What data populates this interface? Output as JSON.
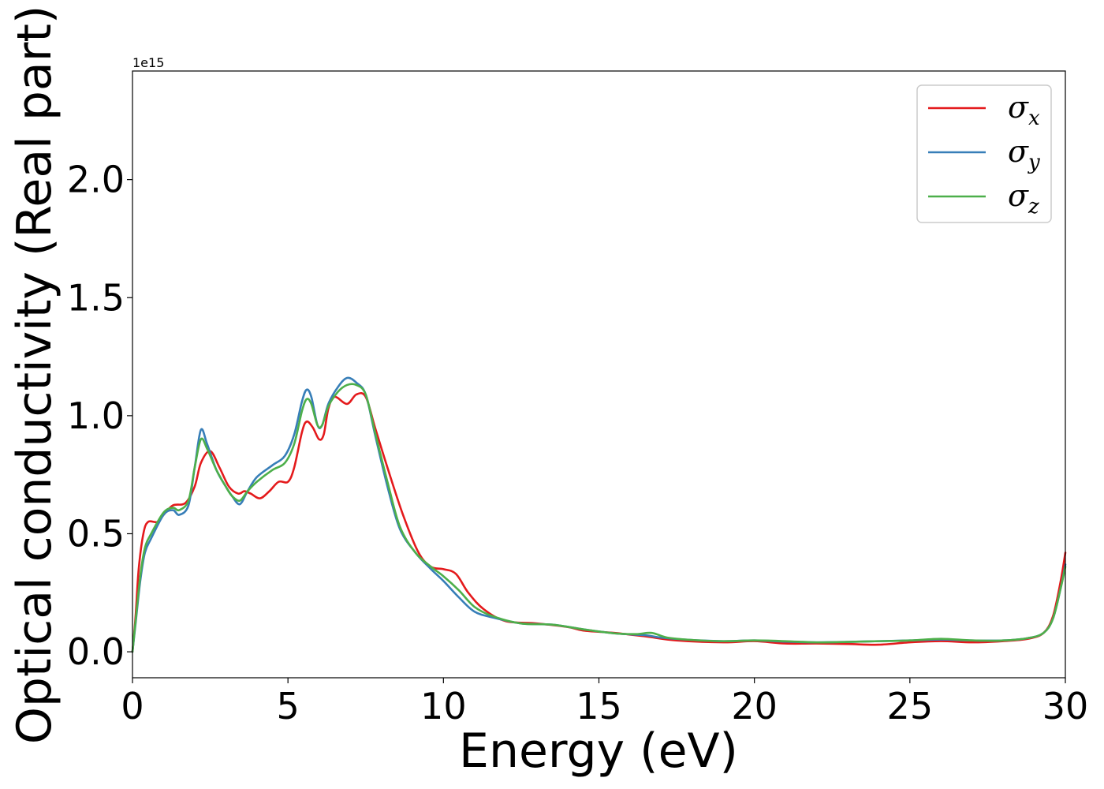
{
  "chart_data": {
    "type": "line",
    "xlabel": "Energy (eV)",
    "ylabel": "Optical conductivity (Real part)",
    "offset_text": "1e15",
    "xlim": [
      0,
      30
    ],
    "ylim": [
      -0.11,
      2.46
    ],
    "x_ticks": [
      0,
      5,
      10,
      15,
      20,
      25,
      30
    ],
    "x_tick_labels": [
      "0",
      "5",
      "10",
      "15",
      "20",
      "25",
      "30"
    ],
    "y_ticks": [
      0.0,
      0.5,
      1.0,
      1.5,
      2.0
    ],
    "y_tick_labels": [
      "0.0",
      "0.5",
      "1.0",
      "1.5",
      "2.0"
    ],
    "grid": false,
    "legend_position": "top-right",
    "y_scale_factor": 1000000000000000.0,
    "series": [
      {
        "name": "σx",
        "legend_main": "σ",
        "legend_sub": "x",
        "color": "#e41a1c",
        "points": [
          [
            0,
            0
          ],
          [
            0.1,
            0.15
          ],
          [
            0.2,
            0.35
          ],
          [
            0.35,
            0.5
          ],
          [
            0.5,
            0.55
          ],
          [
            0.8,
            0.55
          ],
          [
            1.0,
            0.58
          ],
          [
            1.3,
            0.62
          ],
          [
            1.7,
            0.63
          ],
          [
            2.0,
            0.7
          ],
          [
            2.2,
            0.8
          ],
          [
            2.5,
            0.85
          ],
          [
            2.8,
            0.78
          ],
          [
            3.1,
            0.7
          ],
          [
            3.4,
            0.67
          ],
          [
            3.6,
            0.68
          ],
          [
            3.8,
            0.67
          ],
          [
            4.1,
            0.65
          ],
          [
            4.4,
            0.68
          ],
          [
            4.7,
            0.72
          ],
          [
            5.0,
            0.72
          ],
          [
            5.2,
            0.78
          ],
          [
            5.45,
            0.93
          ],
          [
            5.6,
            0.975
          ],
          [
            5.8,
            0.95
          ],
          [
            6.0,
            0.9
          ],
          [
            6.15,
            0.92
          ],
          [
            6.3,
            1.03
          ],
          [
            6.5,
            1.08
          ],
          [
            6.9,
            1.05
          ],
          [
            7.2,
            1.09
          ],
          [
            7.5,
            1.08
          ],
          [
            7.8,
            0.95
          ],
          [
            8.2,
            0.78
          ],
          [
            8.7,
            0.58
          ],
          [
            9.2,
            0.42
          ],
          [
            9.6,
            0.36
          ],
          [
            10.0,
            0.35
          ],
          [
            10.4,
            0.33
          ],
          [
            10.8,
            0.25
          ],
          [
            11.3,
            0.18
          ],
          [
            12.0,
            0.13
          ],
          [
            13.0,
            0.12
          ],
          [
            14.0,
            0.105
          ],
          [
            14.5,
            0.09
          ],
          [
            15.5,
            0.08
          ],
          [
            16.5,
            0.065
          ],
          [
            17.5,
            0.048
          ],
          [
            19.0,
            0.04
          ],
          [
            20.0,
            0.045
          ],
          [
            21.0,
            0.035
          ],
          [
            22.0,
            0.035
          ],
          [
            23.0,
            0.033
          ],
          [
            24.0,
            0.03
          ],
          [
            25.0,
            0.04
          ],
          [
            26.0,
            0.045
          ],
          [
            27.0,
            0.04
          ],
          [
            28.0,
            0.045
          ],
          [
            28.8,
            0.055
          ],
          [
            29.3,
            0.08
          ],
          [
            29.6,
            0.15
          ],
          [
            29.85,
            0.3
          ],
          [
            30.0,
            0.42
          ]
        ]
      },
      {
        "name": "σy",
        "legend_main": "σ",
        "legend_sub": "y",
        "color": "#377eb8",
        "points": [
          [
            0,
            0
          ],
          [
            0.1,
            0.12
          ],
          [
            0.25,
            0.3
          ],
          [
            0.4,
            0.42
          ],
          [
            0.6,
            0.48
          ],
          [
            1.0,
            0.58
          ],
          [
            1.3,
            0.6
          ],
          [
            1.5,
            0.58
          ],
          [
            1.8,
            0.62
          ],
          [
            2.0,
            0.78
          ],
          [
            2.2,
            0.94
          ],
          [
            2.4,
            0.88
          ],
          [
            2.7,
            0.77
          ],
          [
            3.0,
            0.7
          ],
          [
            3.2,
            0.66
          ],
          [
            3.45,
            0.625
          ],
          [
            3.7,
            0.68
          ],
          [
            4.0,
            0.74
          ],
          [
            4.5,
            0.79
          ],
          [
            4.9,
            0.83
          ],
          [
            5.2,
            0.92
          ],
          [
            5.45,
            1.06
          ],
          [
            5.6,
            1.11
          ],
          [
            5.75,
            1.08
          ],
          [
            5.95,
            0.96
          ],
          [
            6.1,
            0.96
          ],
          [
            6.3,
            1.05
          ],
          [
            6.6,
            1.12
          ],
          [
            6.9,
            1.16
          ],
          [
            7.2,
            1.14
          ],
          [
            7.5,
            1.09
          ],
          [
            7.8,
            0.92
          ],
          [
            8.2,
            0.7
          ],
          [
            8.6,
            0.52
          ],
          [
            9.1,
            0.42
          ],
          [
            9.6,
            0.35
          ],
          [
            10.0,
            0.3
          ],
          [
            10.5,
            0.23
          ],
          [
            11.0,
            0.17
          ],
          [
            11.6,
            0.145
          ],
          [
            12.5,
            0.12
          ],
          [
            13.5,
            0.115
          ],
          [
            14.5,
            0.095
          ],
          [
            15.5,
            0.078
          ],
          [
            16.5,
            0.07
          ],
          [
            17.0,
            0.06
          ],
          [
            18.0,
            0.05
          ],
          [
            19.0,
            0.045
          ],
          [
            20.0,
            0.048
          ],
          [
            21.0,
            0.043
          ],
          [
            22.0,
            0.04
          ],
          [
            23.0,
            0.042
          ],
          [
            24.0,
            0.045
          ],
          [
            25.0,
            0.048
          ],
          [
            26.0,
            0.052
          ],
          [
            27.0,
            0.048
          ],
          [
            28.0,
            0.048
          ],
          [
            28.8,
            0.058
          ],
          [
            29.3,
            0.08
          ],
          [
            29.6,
            0.14
          ],
          [
            29.85,
            0.27
          ],
          [
            30.0,
            0.37
          ]
        ]
      },
      {
        "name": "σz",
        "legend_main": "σ",
        "legend_sub": "z",
        "color": "#4daf4a",
        "points": [
          [
            0,
            0
          ],
          [
            0.1,
            0.13
          ],
          [
            0.25,
            0.32
          ],
          [
            0.4,
            0.44
          ],
          [
            0.6,
            0.5
          ],
          [
            1.0,
            0.59
          ],
          [
            1.3,
            0.61
          ],
          [
            1.5,
            0.6
          ],
          [
            1.8,
            0.64
          ],
          [
            2.0,
            0.78
          ],
          [
            2.2,
            0.9
          ],
          [
            2.4,
            0.86
          ],
          [
            2.7,
            0.77
          ],
          [
            3.0,
            0.7
          ],
          [
            3.2,
            0.66
          ],
          [
            3.45,
            0.64
          ],
          [
            3.7,
            0.68
          ],
          [
            4.0,
            0.72
          ],
          [
            4.5,
            0.77
          ],
          [
            4.9,
            0.8
          ],
          [
            5.2,
            0.88
          ],
          [
            5.45,
            1.02
          ],
          [
            5.6,
            1.07
          ],
          [
            5.75,
            1.05
          ],
          [
            5.95,
            0.96
          ],
          [
            6.1,
            0.96
          ],
          [
            6.3,
            1.04
          ],
          [
            6.6,
            1.1
          ],
          [
            6.9,
            1.13
          ],
          [
            7.2,
            1.13
          ],
          [
            7.5,
            1.09
          ],
          [
            7.8,
            0.93
          ],
          [
            8.2,
            0.72
          ],
          [
            8.6,
            0.53
          ],
          [
            9.1,
            0.42
          ],
          [
            9.6,
            0.36
          ],
          [
            10.0,
            0.32
          ],
          [
            10.5,
            0.26
          ],
          [
            11.0,
            0.19
          ],
          [
            11.6,
            0.15
          ],
          [
            12.5,
            0.12
          ],
          [
            13.5,
            0.115
          ],
          [
            14.5,
            0.095
          ],
          [
            15.5,
            0.078
          ],
          [
            16.2,
            0.075
          ],
          [
            16.7,
            0.08
          ],
          [
            17.2,
            0.06
          ],
          [
            18.0,
            0.05
          ],
          [
            19.0,
            0.045
          ],
          [
            20.0,
            0.048
          ],
          [
            21.0,
            0.045
          ],
          [
            22.0,
            0.04
          ],
          [
            23.0,
            0.042
          ],
          [
            24.0,
            0.045
          ],
          [
            25.0,
            0.048
          ],
          [
            26.0,
            0.055
          ],
          [
            27.0,
            0.048
          ],
          [
            28.0,
            0.048
          ],
          [
            28.8,
            0.058
          ],
          [
            29.3,
            0.08
          ],
          [
            29.6,
            0.14
          ],
          [
            29.85,
            0.27
          ],
          [
            30.0,
            0.36
          ]
        ]
      }
    ]
  }
}
